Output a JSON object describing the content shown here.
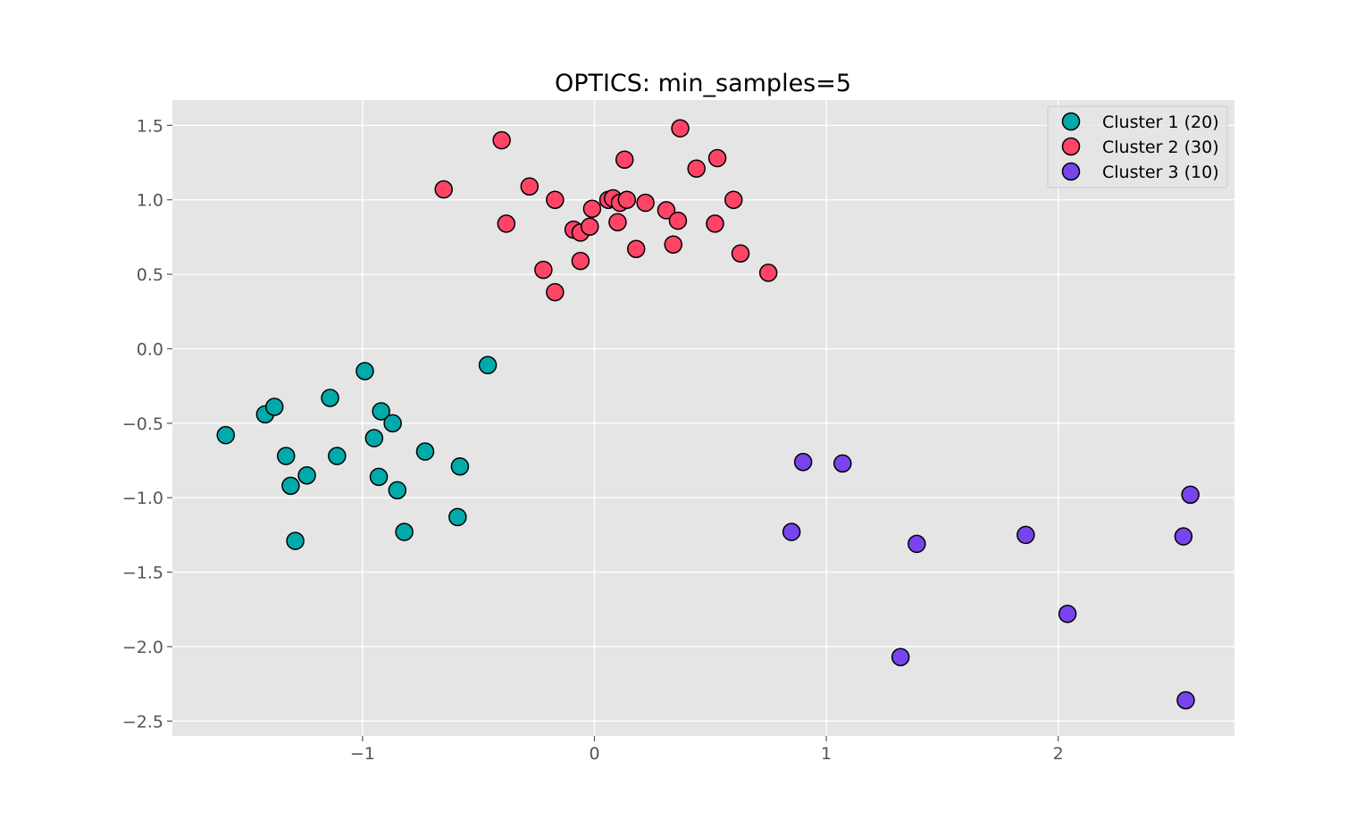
{
  "chart_data": {
    "type": "scatter",
    "title": "OPTICS: min_samples=5",
    "xlabel": "",
    "ylabel": "",
    "xlim": [
      -1.82,
      2.76
    ],
    "ylim": [
      -2.6,
      1.67
    ],
    "xticks": [
      -1,
      0,
      1,
      2
    ],
    "xtick_labels": [
      "−1",
      "0",
      "1",
      "2"
    ],
    "yticks": [
      1.5,
      1.0,
      0.5,
      0.0,
      -0.5,
      -1.0,
      -1.5,
      -2.0,
      -2.5
    ],
    "ytick_labels": [
      "1.5",
      "1.0",
      "0.5",
      "0.0",
      "−0.5",
      "−1.0",
      "−1.5",
      "−2.0",
      "−2.5"
    ],
    "grid": true,
    "legend_position": "top-right",
    "series": [
      {
        "name": "Cluster 1 (20)",
        "color": "#00aaaa",
        "points": [
          [
            -1.59,
            -0.58
          ],
          [
            -1.42,
            -0.44
          ],
          [
            -1.38,
            -0.39
          ],
          [
            -1.33,
            -0.72
          ],
          [
            -1.31,
            -0.92
          ],
          [
            -1.29,
            -1.29
          ],
          [
            -1.24,
            -0.85
          ],
          [
            -1.14,
            -0.33
          ],
          [
            -1.11,
            -0.72
          ],
          [
            -0.99,
            -0.15
          ],
          [
            -0.95,
            -0.6
          ],
          [
            -0.93,
            -0.86
          ],
          [
            -0.92,
            -0.42
          ],
          [
            -0.87,
            -0.5
          ],
          [
            -0.85,
            -0.95
          ],
          [
            -0.82,
            -1.23
          ],
          [
            -0.73,
            -0.69
          ],
          [
            -0.58,
            -0.79
          ],
          [
            -0.59,
            -1.13
          ],
          [
            -0.46,
            -0.11
          ]
        ]
      },
      {
        "name": "Cluster 2 (30)",
        "color": "#ff4466",
        "points": [
          [
            -0.65,
            1.07
          ],
          [
            -0.4,
            1.4
          ],
          [
            -0.38,
            0.84
          ],
          [
            -0.28,
            1.09
          ],
          [
            -0.22,
            0.53
          ],
          [
            -0.17,
            1.0
          ],
          [
            -0.17,
            0.38
          ],
          [
            -0.09,
            0.8
          ],
          [
            -0.06,
            0.78
          ],
          [
            -0.06,
            0.59
          ],
          [
            -0.02,
            0.82
          ],
          [
            -0.01,
            0.94
          ],
          [
            0.06,
            1.0
          ],
          [
            0.08,
            1.01
          ],
          [
            0.1,
            0.85
          ],
          [
            0.11,
            0.98
          ],
          [
            0.13,
            1.27
          ],
          [
            0.14,
            1.0
          ],
          [
            0.18,
            0.67
          ],
          [
            0.22,
            0.98
          ],
          [
            0.31,
            0.93
          ],
          [
            0.34,
            0.7
          ],
          [
            0.36,
            0.86
          ],
          [
            0.37,
            1.48
          ],
          [
            0.44,
            1.21
          ],
          [
            0.52,
            0.84
          ],
          [
            0.53,
            1.28
          ],
          [
            0.6,
            1.0
          ],
          [
            0.63,
            0.64
          ],
          [
            0.75,
            0.51
          ]
        ]
      },
      {
        "name": "Cluster 3 (10)",
        "color": "#7744ee",
        "points": [
          [
            0.9,
            -0.76
          ],
          [
            1.07,
            -0.77
          ],
          [
            0.85,
            -1.23
          ],
          [
            1.39,
            -1.31
          ],
          [
            1.32,
            -2.07
          ],
          [
            1.86,
            -1.25
          ],
          [
            2.04,
            -1.78
          ],
          [
            2.57,
            -0.98
          ],
          [
            2.54,
            -1.26
          ],
          [
            2.55,
            -2.36
          ]
        ]
      }
    ]
  }
}
